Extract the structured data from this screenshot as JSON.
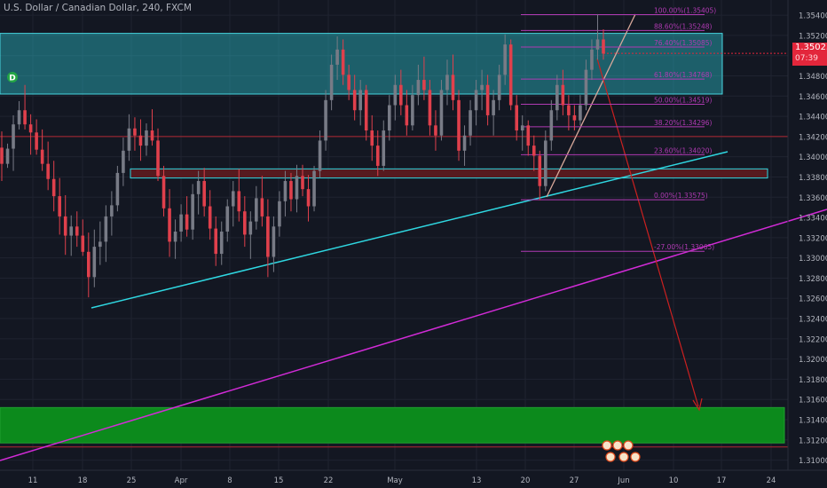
{
  "header": {
    "title": "U.S. Dollar / Canadian Dollar, 240, FXCM"
  },
  "price_tag": {
    "price": "1.35023",
    "countdown": "07:39"
  },
  "marker_label": "D",
  "colors": {
    "background": "#131722",
    "candle_up": "#787b86",
    "candle_down": "#e0404c",
    "resistance_zone": "#2ab8c4",
    "demand_zone": "#0c8a1c",
    "fib": "#b03ab3",
    "trendline": "#2fd7e1",
    "channel_line": "#d22bd7",
    "projection": "#cc2020",
    "current_price": "#e3263b"
  },
  "chart_data": {
    "type": "candlestick",
    "title": "U.S. Dollar / Canadian Dollar, 240, FXCM",
    "xlabel": "",
    "ylabel": "",
    "ylim": [
      1.309,
      1.3555
    ],
    "yticks": [
      "1.35400",
      "1.35200",
      "1.35000",
      "1.34800",
      "1.34600",
      "1.34400",
      "1.34200",
      "1.34000",
      "1.33800",
      "1.33600",
      "1.33400",
      "1.33200",
      "1.33000",
      "1.32800",
      "1.32600",
      "1.32400",
      "1.32200",
      "1.32000",
      "1.31800",
      "1.31600",
      "1.31400",
      "1.31200",
      "1.31000"
    ],
    "x_labels": [
      "11",
      "18",
      "25",
      "Apr",
      "8",
      "15",
      "22",
      "May",
      "13",
      "20",
      "27",
      "Jun",
      "10",
      "17",
      "24"
    ],
    "last_price": 1.35023,
    "fib_levels": [
      {
        "label": "100.00%(1.35405)",
        "value": 1.35405
      },
      {
        "label": "88.60%(1.35248)",
        "value": 1.35248
      },
      {
        "label": "76.40%(1.35085)",
        "value": 1.35085
      },
      {
        "label": "61.80%(1.34768)",
        "value": 1.34768
      },
      {
        "label": "50.00%(1.34519)",
        "value": 1.34519
      },
      {
        "label": "38.20%(1.34296)",
        "value": 1.34296
      },
      {
        "label": "23.60%(1.34020)",
        "value": 1.3402
      },
      {
        "label": "0.00%(1.33575)",
        "value": 1.33575
      },
      {
        "label": "-27.00%(1.33065)",
        "value": 1.33065
      }
    ],
    "zones": [
      {
        "name": "resistance",
        "top": 1.3522,
        "bottom": 1.3462
      },
      {
        "name": "mid",
        "top": 1.3388,
        "bottom": 1.3379
      },
      {
        "name": "demand",
        "top": 1.3152,
        "bottom": 1.3117
      }
    ],
    "horizontal_lines": [
      1.342,
      1.3113
    ],
    "candles": [
      {
        "o": 1.3409,
        "h": 1.3425,
        "l": 1.3376,
        "c": 1.3393
      },
      {
        "o": 1.3393,
        "h": 1.3413,
        "l": 1.3389,
        "c": 1.3408
      },
      {
        "o": 1.3408,
        "h": 1.3441,
        "l": 1.3386,
        "c": 1.3432
      },
      {
        "o": 1.3432,
        "h": 1.3455,
        "l": 1.3427,
        "c": 1.3446
      },
      {
        "o": 1.3446,
        "h": 1.3471,
        "l": 1.3427,
        "c": 1.3432
      },
      {
        "o": 1.3432,
        "h": 1.3442,
        "l": 1.3402,
        "c": 1.3424
      },
      {
        "o": 1.3424,
        "h": 1.3437,
        "l": 1.3402,
        "c": 1.3407
      },
      {
        "o": 1.3407,
        "h": 1.3427,
        "l": 1.3386,
        "c": 1.3393
      },
      {
        "o": 1.3393,
        "h": 1.3415,
        "l": 1.3367,
        "c": 1.3378
      },
      {
        "o": 1.3378,
        "h": 1.3396,
        "l": 1.3346,
        "c": 1.3361
      },
      {
        "o": 1.3361,
        "h": 1.3379,
        "l": 1.3323,
        "c": 1.3341
      },
      {
        "o": 1.3341,
        "h": 1.3362,
        "l": 1.3303,
        "c": 1.3322
      },
      {
        "o": 1.3322,
        "h": 1.3342,
        "l": 1.3302,
        "c": 1.3331
      },
      {
        "o": 1.3331,
        "h": 1.3346,
        "l": 1.3311,
        "c": 1.3322
      },
      {
        "o": 1.3322,
        "h": 1.3338,
        "l": 1.3302,
        "c": 1.3306
      },
      {
        "o": 1.3306,
        "h": 1.3325,
        "l": 1.3261,
        "c": 1.3281
      },
      {
        "o": 1.3281,
        "h": 1.3328,
        "l": 1.3271,
        "c": 1.3311
      },
      {
        "o": 1.3311,
        "h": 1.3336,
        "l": 1.3293,
        "c": 1.3316
      },
      {
        "o": 1.3316,
        "h": 1.3352,
        "l": 1.3296,
        "c": 1.3341
      },
      {
        "o": 1.3341,
        "h": 1.3366,
        "l": 1.3322,
        "c": 1.3352
      },
      {
        "o": 1.3352,
        "h": 1.3391,
        "l": 1.3346,
        "c": 1.3384
      },
      {
        "o": 1.3384,
        "h": 1.3419,
        "l": 1.3371,
        "c": 1.3406
      },
      {
        "o": 1.3406,
        "h": 1.3442,
        "l": 1.3396,
        "c": 1.3428
      },
      {
        "o": 1.3428,
        "h": 1.3439,
        "l": 1.3406,
        "c": 1.3421
      },
      {
        "o": 1.3421,
        "h": 1.3437,
        "l": 1.3396,
        "c": 1.3411
      },
      {
        "o": 1.3411,
        "h": 1.3433,
        "l": 1.3401,
        "c": 1.3426
      },
      {
        "o": 1.3426,
        "h": 1.3447,
        "l": 1.3411,
        "c": 1.3416
      },
      {
        "o": 1.3416,
        "h": 1.3428,
        "l": 1.3376,
        "c": 1.3381
      },
      {
        "o": 1.3381,
        "h": 1.3391,
        "l": 1.3341,
        "c": 1.3349
      },
      {
        "o": 1.3349,
        "h": 1.3368,
        "l": 1.3301,
        "c": 1.3316
      },
      {
        "o": 1.3316,
        "h": 1.3338,
        "l": 1.3299,
        "c": 1.3326
      },
      {
        "o": 1.3326,
        "h": 1.3353,
        "l": 1.3316,
        "c": 1.3343
      },
      {
        "o": 1.3343,
        "h": 1.3361,
        "l": 1.3321,
        "c": 1.3328
      },
      {
        "o": 1.3328,
        "h": 1.3373,
        "l": 1.3318,
        "c": 1.3363
      },
      {
        "o": 1.3363,
        "h": 1.3386,
        "l": 1.3343,
        "c": 1.3376
      },
      {
        "o": 1.3376,
        "h": 1.3389,
        "l": 1.3341,
        "c": 1.3351
      },
      {
        "o": 1.3351,
        "h": 1.3367,
        "l": 1.3318,
        "c": 1.3329
      },
      {
        "o": 1.3329,
        "h": 1.3341,
        "l": 1.3292,
        "c": 1.3304
      },
      {
        "o": 1.3304,
        "h": 1.3336,
        "l": 1.3293,
        "c": 1.3326
      },
      {
        "o": 1.3326,
        "h": 1.3358,
        "l": 1.3316,
        "c": 1.3351
      },
      {
        "o": 1.3351,
        "h": 1.3376,
        "l": 1.3331,
        "c": 1.3366
      },
      {
        "o": 1.3366,
        "h": 1.3388,
        "l": 1.3336,
        "c": 1.3346
      },
      {
        "o": 1.3346,
        "h": 1.3361,
        "l": 1.3311,
        "c": 1.3323
      },
      {
        "o": 1.3323,
        "h": 1.3346,
        "l": 1.3299,
        "c": 1.3336
      },
      {
        "o": 1.3336,
        "h": 1.3371,
        "l": 1.3328,
        "c": 1.3359
      },
      {
        "o": 1.3359,
        "h": 1.3381,
        "l": 1.3331,
        "c": 1.3341
      },
      {
        "o": 1.3341,
        "h": 1.3358,
        "l": 1.3281,
        "c": 1.3301
      },
      {
        "o": 1.3301,
        "h": 1.3341,
        "l": 1.3286,
        "c": 1.3331
      },
      {
        "o": 1.3331,
        "h": 1.3366,
        "l": 1.3321,
        "c": 1.3356
      },
      {
        "o": 1.3356,
        "h": 1.3386,
        "l": 1.3341,
        "c": 1.3376
      },
      {
        "o": 1.3376,
        "h": 1.3384,
        "l": 1.3346,
        "c": 1.3358
      },
      {
        "o": 1.3358,
        "h": 1.3392,
        "l": 1.3345,
        "c": 1.3381
      },
      {
        "o": 1.3381,
        "h": 1.3392,
        "l": 1.3361,
        "c": 1.3368
      },
      {
        "o": 1.3368,
        "h": 1.3382,
        "l": 1.3336,
        "c": 1.3351
      },
      {
        "o": 1.3351,
        "h": 1.3391,
        "l": 1.3346,
        "c": 1.3386
      },
      {
        "o": 1.3386,
        "h": 1.3426,
        "l": 1.3379,
        "c": 1.3416
      },
      {
        "o": 1.3416,
        "h": 1.3466,
        "l": 1.3406,
        "c": 1.3456
      },
      {
        "o": 1.3456,
        "h": 1.3501,
        "l": 1.3446,
        "c": 1.3491
      },
      {
        "o": 1.3491,
        "h": 1.3519,
        "l": 1.3476,
        "c": 1.3506
      },
      {
        "o": 1.3506,
        "h": 1.3516,
        "l": 1.3471,
        "c": 1.3481
      },
      {
        "o": 1.3481,
        "h": 1.3491,
        "l": 1.3456,
        "c": 1.3466
      },
      {
        "o": 1.3466,
        "h": 1.3481,
        "l": 1.3436,
        "c": 1.3446
      },
      {
        "o": 1.3446,
        "h": 1.3476,
        "l": 1.3431,
        "c": 1.3466
      },
      {
        "o": 1.3466,
        "h": 1.3471,
        "l": 1.3416,
        "c": 1.3426
      },
      {
        "o": 1.3426,
        "h": 1.3441,
        "l": 1.3396,
        "c": 1.3411
      },
      {
        "o": 1.3411,
        "h": 1.3426,
        "l": 1.3381,
        "c": 1.3391
      },
      {
        "o": 1.3391,
        "h": 1.3436,
        "l": 1.3386,
        "c": 1.3426
      },
      {
        "o": 1.3426,
        "h": 1.3461,
        "l": 1.3416,
        "c": 1.3451
      },
      {
        "o": 1.3451,
        "h": 1.3481,
        "l": 1.3436,
        "c": 1.3471
      },
      {
        "o": 1.3471,
        "h": 1.3486,
        "l": 1.3441,
        "c": 1.3451
      },
      {
        "o": 1.3451,
        "h": 1.3466,
        "l": 1.3421,
        "c": 1.3431
      },
      {
        "o": 1.3431,
        "h": 1.3471,
        "l": 1.3426,
        "c": 1.3461
      },
      {
        "o": 1.3461,
        "h": 1.3491,
        "l": 1.3451,
        "c": 1.3476
      },
      {
        "o": 1.3476,
        "h": 1.3499,
        "l": 1.3456,
        "c": 1.3466
      },
      {
        "o": 1.3466,
        "h": 1.3476,
        "l": 1.3421,
        "c": 1.3431
      },
      {
        "o": 1.3431,
        "h": 1.3446,
        "l": 1.3406,
        "c": 1.3421
      },
      {
        "o": 1.3421,
        "h": 1.3476,
        "l": 1.3416,
        "c": 1.3466
      },
      {
        "o": 1.3466,
        "h": 1.3496,
        "l": 1.3451,
        "c": 1.3481
      },
      {
        "o": 1.3481,
        "h": 1.3501,
        "l": 1.3446,
        "c": 1.3456
      },
      {
        "o": 1.3456,
        "h": 1.3466,
        "l": 1.3396,
        "c": 1.3406
      },
      {
        "o": 1.3406,
        "h": 1.3431,
        "l": 1.3391,
        "c": 1.3421
      },
      {
        "o": 1.3421,
        "h": 1.3456,
        "l": 1.3411,
        "c": 1.3446
      },
      {
        "o": 1.3446,
        "h": 1.3476,
        "l": 1.3431,
        "c": 1.3466
      },
      {
        "o": 1.3466,
        "h": 1.3486,
        "l": 1.3446,
        "c": 1.3471
      },
      {
        "o": 1.3471,
        "h": 1.3481,
        "l": 1.3431,
        "c": 1.3441
      },
      {
        "o": 1.3441,
        "h": 1.3466,
        "l": 1.3421,
        "c": 1.3456
      },
      {
        "o": 1.3456,
        "h": 1.3491,
        "l": 1.3446,
        "c": 1.3481
      },
      {
        "o": 1.3481,
        "h": 1.3521,
        "l": 1.3471,
        "c": 1.3511
      },
      {
        "o": 1.3511,
        "h": 1.3516,
        "l": 1.3446,
        "c": 1.3451
      },
      {
        "o": 1.3451,
        "h": 1.3461,
        "l": 1.3416,
        "c": 1.3426
      },
      {
        "o": 1.3426,
        "h": 1.3441,
        "l": 1.3406,
        "c": 1.3431
      },
      {
        "o": 1.3431,
        "h": 1.3436,
        "l": 1.3401,
        "c": 1.3411
      },
      {
        "o": 1.3411,
        "h": 1.3421,
        "l": 1.3386,
        "c": 1.3401
      },
      {
        "o": 1.3401,
        "h": 1.3406,
        "l": 1.3357,
        "c": 1.3371
      },
      {
        "o": 1.3371,
        "h": 1.3426,
        "l": 1.3366,
        "c": 1.3416
      },
      {
        "o": 1.3416,
        "h": 1.3456,
        "l": 1.3406,
        "c": 1.3446
      },
      {
        "o": 1.3446,
        "h": 1.3481,
        "l": 1.3436,
        "c": 1.3471
      },
      {
        "o": 1.3471,
        "h": 1.3486,
        "l": 1.3441,
        "c": 1.3451
      },
      {
        "o": 1.3451,
        "h": 1.3461,
        "l": 1.3426,
        "c": 1.3441
      },
      {
        "o": 1.3441,
        "h": 1.3451,
        "l": 1.3426,
        "c": 1.3436
      },
      {
        "o": 1.3436,
        "h": 1.3461,
        "l": 1.3431,
        "c": 1.3451
      },
      {
        "o": 1.3451,
        "h": 1.3496,
        "l": 1.3446,
        "c": 1.3486
      },
      {
        "o": 1.3486,
        "h": 1.3516,
        "l": 1.3476,
        "c": 1.3506
      },
      {
        "o": 1.3506,
        "h": 1.3541,
        "l": 1.3496,
        "c": 1.3516
      },
      {
        "o": 1.3516,
        "h": 1.3526,
        "l": 1.3496,
        "c": 1.3502
      }
    ]
  }
}
